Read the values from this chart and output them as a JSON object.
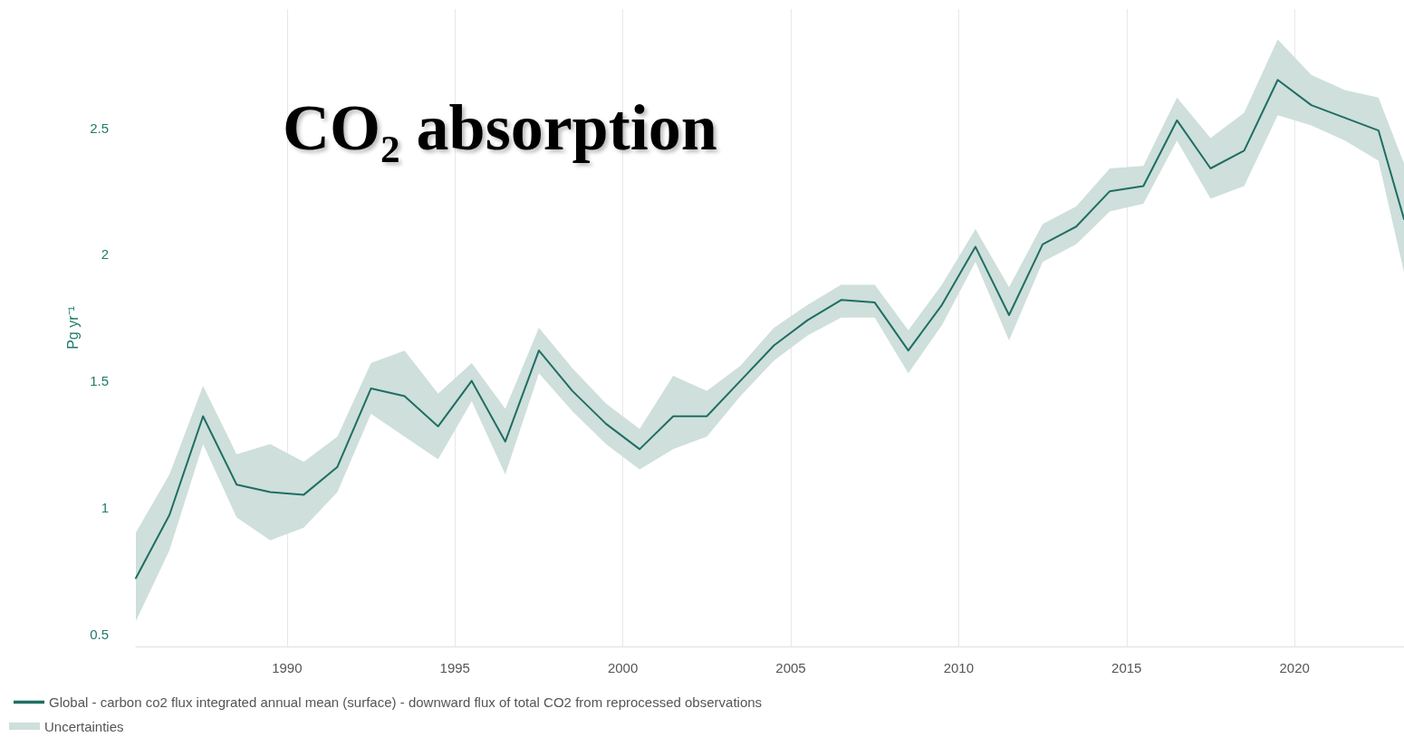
{
  "chart_data": {
    "type": "line",
    "title": "CO₂ absorption",
    "ylabel": "Pg yr⁻¹",
    "x": [
      1985.5,
      1986.5,
      1987.5,
      1988.5,
      1989.5,
      1990.5,
      1991.5,
      1992.5,
      1993.5,
      1994.5,
      1995.5,
      1996.5,
      1997.5,
      1998.5,
      1999.5,
      2000.5,
      2001.5,
      2002.5,
      2003.5,
      2004.5,
      2005.5,
      2006.5,
      2007.5,
      2008.5,
      2009.5,
      2010.5,
      2011.5,
      2012.5,
      2013.5,
      2014.5,
      2015.5,
      2016.5,
      2017.5,
      2018.5,
      2019.5,
      2020.5,
      2021.5,
      2022.5,
      2023.26
    ],
    "series": [
      {
        "name": "Global - carbon co2 flux integrated annual mean (surface) - downward flux of total CO2 from reprocessed observations",
        "color": "#1f6e62",
        "values": [
          0.72,
          0.97,
          1.36,
          1.09,
          1.06,
          1.05,
          1.16,
          1.47,
          1.44,
          1.32,
          1.5,
          1.26,
          1.62,
          1.46,
          1.33,
          1.23,
          1.36,
          1.36,
          1.5,
          1.64,
          1.74,
          1.82,
          1.81,
          1.62,
          1.8,
          2.03,
          1.76,
          2.04,
          2.11,
          2.25,
          2.27,
          2.53,
          2.34,
          2.41,
          2.69,
          2.59,
          2.54,
          2.49,
          2.14
        ],
        "lower": [
          0.55,
          0.83,
          1.25,
          0.96,
          0.87,
          0.92,
          1.06,
          1.37,
          1.28,
          1.19,
          1.42,
          1.13,
          1.53,
          1.38,
          1.25,
          1.15,
          1.23,
          1.28,
          1.44,
          1.58,
          1.68,
          1.75,
          1.75,
          1.53,
          1.72,
          1.97,
          1.66,
          1.97,
          2.04,
          2.17,
          2.2,
          2.45,
          2.22,
          2.27,
          2.55,
          2.51,
          2.45,
          2.37,
          1.93
        ],
        "upper": [
          0.9,
          1.13,
          1.48,
          1.21,
          1.25,
          1.18,
          1.28,
          1.57,
          1.62,
          1.45,
          1.57,
          1.39,
          1.71,
          1.55,
          1.41,
          1.31,
          1.52,
          1.46,
          1.56,
          1.71,
          1.8,
          1.88,
          1.88,
          1.7,
          1.88,
          2.1,
          1.87,
          2.12,
          2.19,
          2.34,
          2.35,
          2.62,
          2.46,
          2.56,
          2.85,
          2.71,
          2.65,
          2.62,
          2.36
        ]
      }
    ],
    "annotations": [
      "Uncertainties"
    ],
    "xlim": [
      1985.5,
      2023.26
    ],
    "xticks": [
      1990,
      1995,
      2000,
      2005,
      2010,
      2015,
      2020
    ],
    "ylim": [
      0.45,
      2.97
    ],
    "yticks": [
      0.5,
      1,
      1.5,
      2,
      2.5
    ],
    "grid": "x",
    "legend": "bottom left",
    "marker": "none",
    "line_style": "solid"
  }
}
